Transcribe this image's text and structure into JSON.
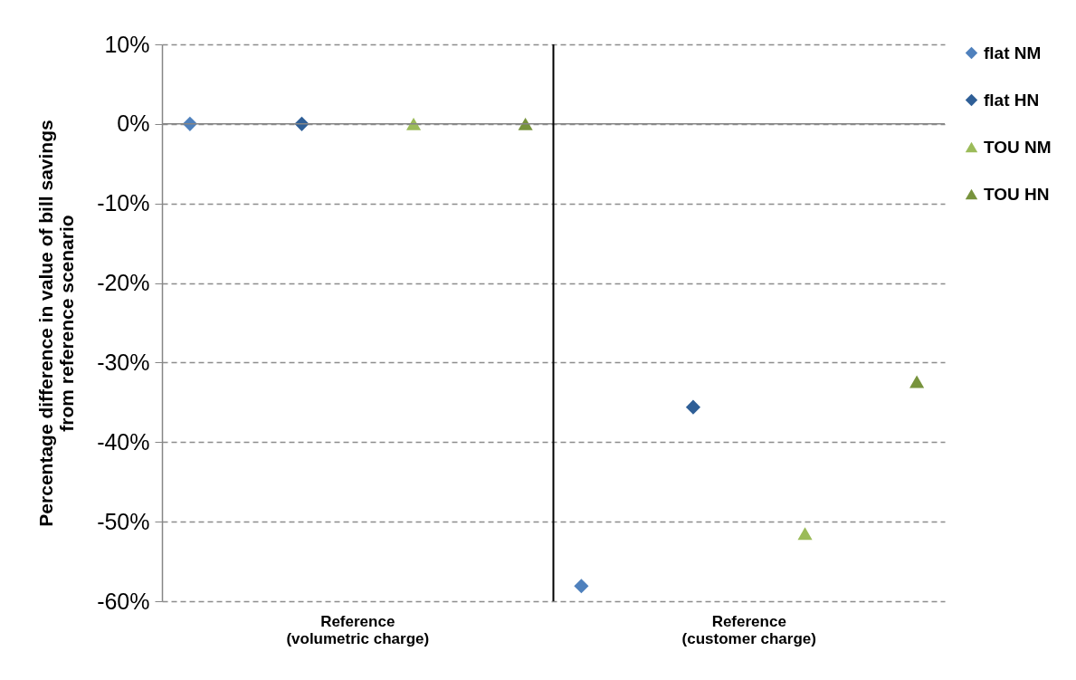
{
  "chart_data": {
    "type": "scatter",
    "ylabel": "Percentage difference in value of bill savings\nfrom reference scenario",
    "categories": [
      "Reference\n(volumetric charge)",
      "Reference\n(customer charge)"
    ],
    "series": [
      {
        "name": "flat NM",
        "color": "#4f81bd",
        "marker": "diamond",
        "values": [
          0,
          -58.1
        ]
      },
      {
        "name": "flat HN",
        "color": "#2f5f97",
        "marker": "diamond",
        "values": [
          0,
          -35.6
        ]
      },
      {
        "name": "TOU NM",
        "color": "#9bbb59",
        "marker": "triangle",
        "values": [
          0,
          -51.5
        ]
      },
      {
        "name": "TOU HN",
        "color": "#77933c",
        "marker": "triangle",
        "values": [
          0,
          -32.4
        ]
      }
    ],
    "ylim": [
      -60,
      10
    ],
    "yticks": [
      {
        "value": 10,
        "label": "10%"
      },
      {
        "value": 0,
        "label": "0%"
      },
      {
        "value": -10,
        "label": "-10%"
      },
      {
        "value": -20,
        "label": "-20%"
      },
      {
        "value": -30,
        "label": "-30%"
      },
      {
        "value": -40,
        "label": "-40%"
      },
      {
        "value": -50,
        "label": "-50%"
      },
      {
        "value": -60,
        "label": "-60%"
      }
    ],
    "ref_lines": [
      {
        "axis": "y",
        "value": 0,
        "color": "#868686"
      },
      {
        "axis": "x",
        "value": "Reference\n(customer charge)",
        "color": "#000000"
      }
    ],
    "grid": "y",
    "legend": "right"
  }
}
